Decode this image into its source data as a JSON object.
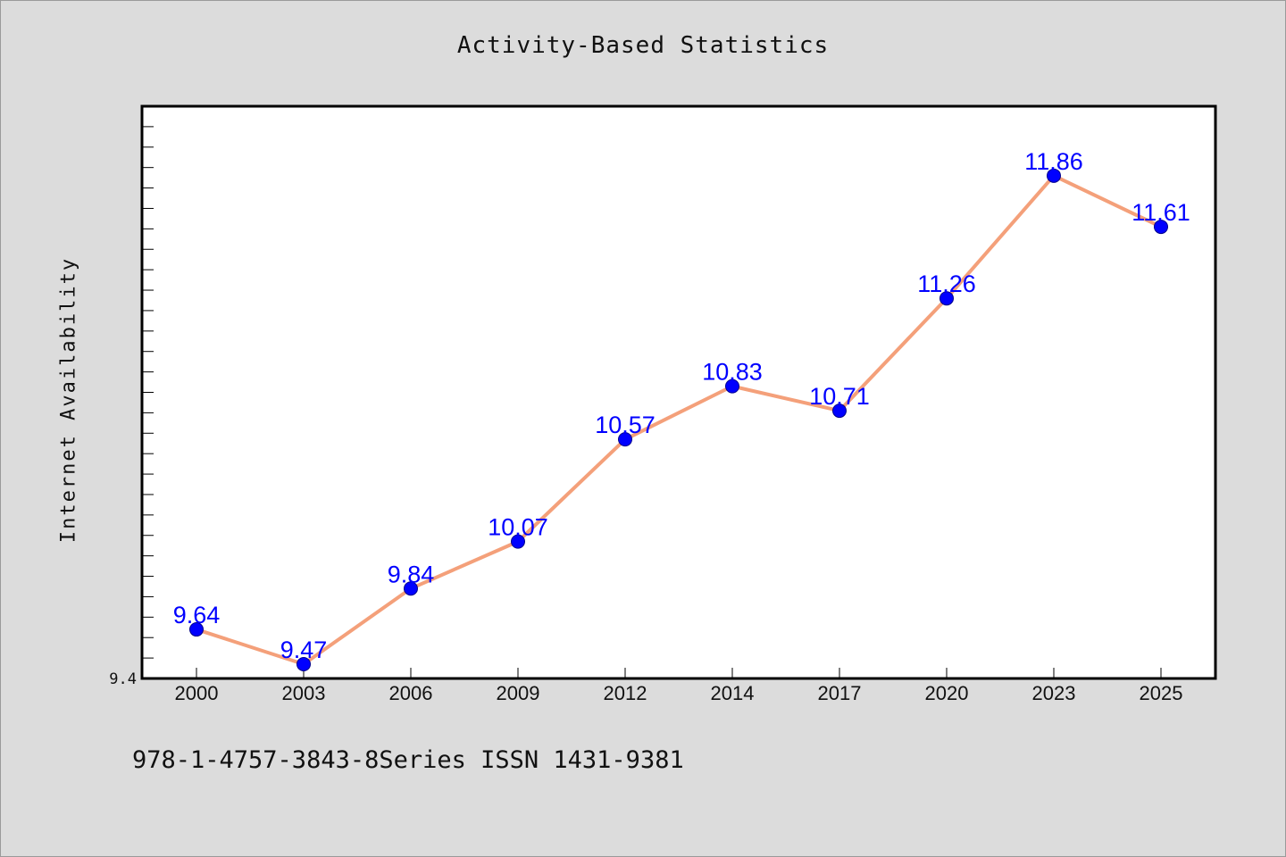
{
  "chart_data": {
    "type": "line",
    "title": "Activity-Based Statistics",
    "xlabel": "",
    "ylabel": "Internet Availability",
    "categories": [
      "2000",
      "2003",
      "2006",
      "2009",
      "2012",
      "2014",
      "2017",
      "2020",
      "2023",
      "2025"
    ],
    "series": [
      {
        "values": [
          9.64,
          9.47,
          9.84,
          10.07,
          10.57,
          10.83,
          10.71,
          11.26,
          11.86,
          11.61
        ]
      }
    ],
    "ylim": [
      9.4,
      12.2
    ],
    "ytick_labels": [
      "9.4"
    ],
    "grid": false,
    "line_color": "#f4a07a",
    "marker_color": "#0000ff",
    "label_color": "#0000ff"
  },
  "footer_text": "978-1-4757-3843-8Series ISSN 1431-9381"
}
